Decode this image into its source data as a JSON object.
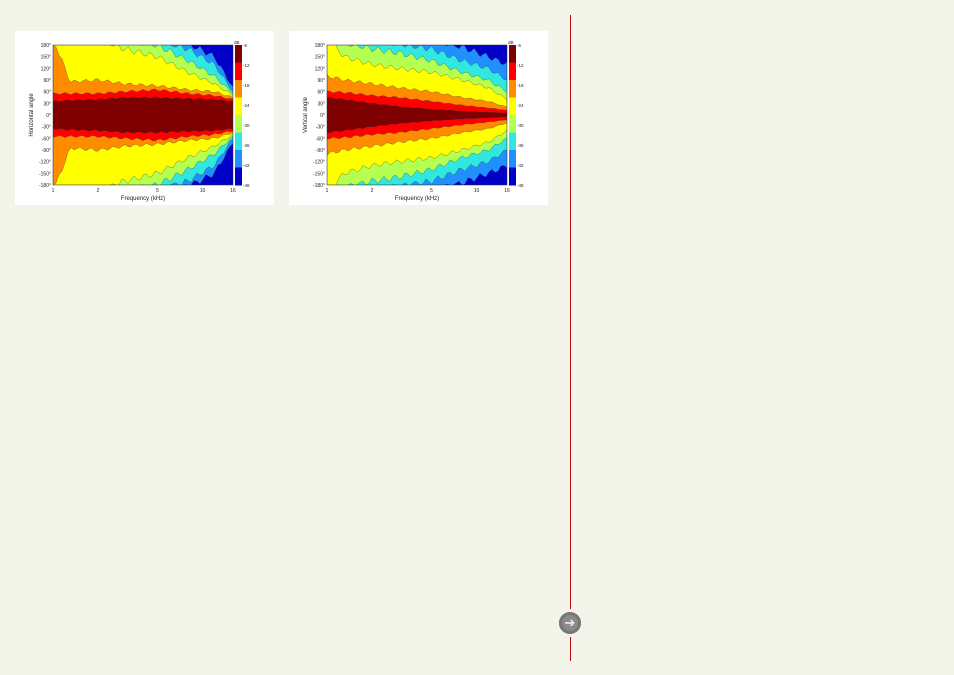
{
  "colors": {
    "levels": [
      "#7f0000",
      "#ff0000",
      "#ff8c00",
      "#ffff00",
      "#b4ff50",
      "#30e8e0",
      "#2090ff",
      "#0000c8"
    ],
    "divider": "#c01010"
  },
  "nav": {
    "icon": "arrow-right-circle-icon"
  },
  "chart_data": [
    {
      "type": "heatmap",
      "subtype": "contour",
      "xlabel": "Frequency (kHz)",
      "ylabel": "Horizontal angle",
      "xscale": "log",
      "xlim": [
        1,
        16
      ],
      "ylim": [
        -180,
        180
      ],
      "xticks": [
        "1",
        "2",
        "5",
        "10",
        "16"
      ],
      "yticks": [
        "180°",
        "150°",
        "120°",
        "90°",
        "60°",
        "30°",
        "0°",
        "-30°",
        "-60°",
        "-90°",
        "-120°",
        "-150°",
        "-180°"
      ],
      "colorbar": {
        "unit": "dB",
        "ticks": [
          "-6",
          "-12",
          "-18",
          "-24",
          "-30",
          "-36",
          "-42",
          "-48"
        ]
      },
      "contour_freqs": [
        1,
        1.3,
        2,
        3,
        5,
        8,
        12,
        16
      ],
      "level_half_angles": [
        {
          "level": "-6",
          "angles": [
            35,
            38,
            40,
            45,
            45,
            42,
            40,
            35
          ]
        },
        {
          "level": "-12",
          "angles": [
            55,
            55,
            55,
            60,
            65,
            55,
            50,
            40
          ]
        },
        {
          "level": "-18",
          "angles": [
            200,
            85,
            90,
            80,
            75,
            65,
            60,
            45
          ]
        },
        {
          "level": "-24",
          "angles": [
            200,
            200,
            200,
            170,
            150,
            110,
            80,
            50
          ]
        },
        {
          "level": "-30",
          "angles": [
            200,
            200,
            200,
            200,
            180,
            140,
            100,
            55
          ]
        },
        {
          "level": "-36",
          "angles": [
            200,
            200,
            200,
            200,
            195,
            170,
            130,
            60
          ]
        },
        {
          "level": "-42",
          "angles": [
            200,
            200,
            200,
            200,
            200,
            185,
            150,
            70
          ]
        }
      ]
    },
    {
      "type": "heatmap",
      "subtype": "contour",
      "xlabel": "Frequency (kHz)",
      "ylabel": "Vertical angle",
      "xscale": "log",
      "xlim": [
        1,
        16
      ],
      "ylim": [
        -180,
        180
      ],
      "xticks": [
        "1",
        "2",
        "5",
        "10",
        "16"
      ],
      "yticks": [
        "180°",
        "150°",
        "120°",
        "90°",
        "60°",
        "30°",
        "0°",
        "-30°",
        "-60°",
        "-90°",
        "-120°",
        "-150°",
        "-180°"
      ],
      "colorbar": {
        "unit": "dB",
        "ticks": [
          "-6",
          "-12",
          "-18",
          "-24",
          "-30",
          "-36",
          "-42",
          "-48"
        ]
      },
      "contour_freqs": [
        1,
        1.3,
        2,
        3,
        5,
        8,
        12,
        16
      ],
      "level_half_angles": [
        {
          "level": "-6",
          "angles": [
            45,
            40,
            30,
            22,
            15,
            10,
            7,
            5
          ]
        },
        {
          "level": "-12",
          "angles": [
            60,
            58,
            50,
            45,
            35,
            25,
            18,
            12
          ]
        },
        {
          "level": "-18",
          "angles": [
            100,
            90,
            80,
            70,
            60,
            45,
            35,
            20
          ]
        },
        {
          "level": "-24",
          "angles": [
            200,
            150,
            130,
            120,
            110,
            90,
            70,
            40
          ]
        },
        {
          "level": "-30",
          "angles": [
            200,
            190,
            170,
            160,
            140,
            110,
            90,
            60
          ]
        },
        {
          "level": "-36",
          "angles": [
            200,
            200,
            200,
            185,
            170,
            140,
            120,
            90
          ]
        },
        {
          "level": "-42",
          "angles": [
            200,
            200,
            200,
            200,
            200,
            175,
            150,
            130
          ]
        }
      ]
    }
  ]
}
